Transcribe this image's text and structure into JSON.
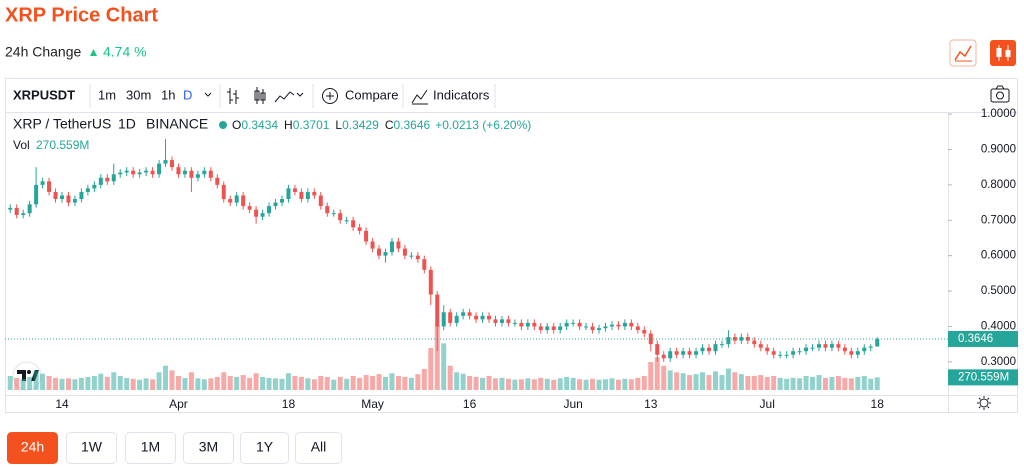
{
  "header": {
    "title": "XRP Price Chart",
    "change_label": "24h Change",
    "change_value": "4.74 %"
  },
  "toolbar": {
    "symbol": "XRPUSDT",
    "intervals": [
      "1m",
      "30m",
      "1h",
      "D"
    ],
    "compare": "Compare",
    "indicators": "Indicators"
  },
  "chart_data": {
    "type": "candlestick",
    "symbol_label": "XRP / TetherUS",
    "interval": "1D",
    "exchange": "BINANCE",
    "ohlc_labels": [
      "O",
      "H",
      "L",
      "C"
    ],
    "change": "+0.0213 (+6.20%)",
    "volume_label": "Vol",
    "volume_value_label": "270.559M",
    "categories": [
      null,
      null,
      null,
      null,
      null,
      null,
      null,
      null,
      "14",
      null,
      null,
      null,
      null,
      null,
      null,
      null,
      null,
      null,
      null,
      null,
      null,
      null,
      null,
      null,
      null,
      null,
      "Apr",
      null,
      null,
      null,
      null,
      null,
      null,
      null,
      null,
      null,
      null,
      null,
      null,
      null,
      null,
      null,
      null,
      "18",
      null,
      null,
      null,
      null,
      null,
      null,
      null,
      null,
      null,
      null,
      null,
      null,
      "May",
      null,
      null,
      null,
      null,
      null,
      null,
      null,
      null,
      null,
      null,
      null,
      null,
      null,
      null,
      "16",
      null,
      null,
      null,
      null,
      null,
      null,
      null,
      null,
      null,
      null,
      null,
      null,
      null,
      null,
      null,
      "Jun",
      null,
      null,
      null,
      null,
      null,
      null,
      null,
      null,
      null,
      null,
      null,
      "13",
      null,
      null,
      null,
      null,
      null,
      null,
      null,
      null,
      null,
      null,
      null,
      null,
      null,
      null,
      null,
      null,
      null,
      "Jul",
      null,
      null,
      null,
      null,
      null,
      null,
      null,
      null,
      null,
      null,
      null,
      null,
      null,
      null,
      null,
      null,
      "18"
    ],
    "open": [
      0.73,
      0.735,
      0.715,
      0.72,
      0.745,
      0.8,
      0.81,
      0.78,
      0.76,
      0.77,
      0.75,
      0.76,
      0.78,
      0.79,
      0.8,
      0.82,
      0.81,
      0.83,
      0.835,
      0.84,
      0.83,
      0.835,
      0.84,
      0.83,
      0.86,
      0.87,
      0.85,
      0.83,
      0.84,
      0.82,
      0.83,
      0.84,
      0.82,
      0.8,
      0.76,
      0.75,
      0.77,
      0.74,
      0.73,
      0.71,
      0.72,
      0.74,
      0.75,
      0.76,
      0.79,
      0.78,
      0.76,
      0.78,
      0.77,
      0.74,
      0.72,
      0.72,
      0.7,
      0.7,
      0.68,
      0.67,
      0.64,
      0.62,
      0.6,
      0.61,
      0.64,
      0.62,
      0.6,
      0.6,
      0.59,
      0.56,
      0.49,
      0.4,
      0.44,
      0.41,
      0.43,
      0.44,
      0.43,
      0.42,
      0.43,
      0.42,
      0.41,
      0.42,
      0.41,
      0.41,
      0.4,
      0.41,
      0.4,
      0.39,
      0.4,
      0.39,
      0.4,
      0.41,
      0.41,
      0.4,
      0.4,
      0.39,
      0.395,
      0.4,
      0.405,
      0.4,
      0.41,
      0.4,
      0.39,
      0.38,
      0.35,
      0.32,
      0.31,
      0.33,
      0.32,
      0.33,
      0.32,
      0.33,
      0.34,
      0.33,
      0.35,
      0.35,
      0.37,
      0.36,
      0.37,
      0.36,
      0.35,
      0.34,
      0.33,
      0.32,
      0.32,
      0.32,
      0.33,
      0.33,
      0.34,
      0.34,
      0.35,
      0.34,
      0.35,
      0.34,
      0.33,
      0.32,
      0.33,
      0.34,
      0.3434
    ],
    "high": [
      0.745,
      0.745,
      0.73,
      0.755,
      0.85,
      0.82,
      0.82,
      0.79,
      0.78,
      0.78,
      0.77,
      0.79,
      0.8,
      0.81,
      0.83,
      0.83,
      0.86,
      0.845,
      0.85,
      0.85,
      0.845,
      0.85,
      0.85,
      0.87,
      0.93,
      0.88,
      0.86,
      0.85,
      0.85,
      0.84,
      0.85,
      0.85,
      0.83,
      0.81,
      0.77,
      0.78,
      0.78,
      0.75,
      0.74,
      0.73,
      0.75,
      0.76,
      0.77,
      0.8,
      0.8,
      0.79,
      0.79,
      0.79,
      0.78,
      0.75,
      0.73,
      0.73,
      0.71,
      0.71,
      0.69,
      0.68,
      0.65,
      0.63,
      0.62,
      0.65,
      0.65,
      0.63,
      0.61,
      0.61,
      0.6,
      0.57,
      0.5,
      0.46,
      0.45,
      0.44,
      0.45,
      0.45,
      0.44,
      0.44,
      0.44,
      0.43,
      0.43,
      0.43,
      0.42,
      0.42,
      0.42,
      0.42,
      0.41,
      0.41,
      0.41,
      0.41,
      0.42,
      0.42,
      0.42,
      0.41,
      0.41,
      0.405,
      0.41,
      0.415,
      0.415,
      0.42,
      0.42,
      0.41,
      0.4,
      0.39,
      0.36,
      0.33,
      0.34,
      0.34,
      0.34,
      0.34,
      0.34,
      0.35,
      0.35,
      0.36,
      0.36,
      0.39,
      0.38,
      0.38,
      0.38,
      0.37,
      0.36,
      0.35,
      0.34,
      0.33,
      0.33,
      0.34,
      0.34,
      0.35,
      0.35,
      0.36,
      0.36,
      0.36,
      0.36,
      0.35,
      0.34,
      0.34,
      0.35,
      0.35,
      0.3701
    ],
    "low": [
      0.72,
      0.705,
      0.705,
      0.71,
      0.735,
      0.79,
      0.77,
      0.75,
      0.75,
      0.74,
      0.74,
      0.75,
      0.77,
      0.78,
      0.79,
      0.8,
      0.8,
      0.82,
      0.825,
      0.82,
      0.82,
      0.825,
      0.82,
      0.82,
      0.85,
      0.84,
      0.82,
      0.82,
      0.78,
      0.81,
      0.82,
      0.81,
      0.79,
      0.75,
      0.74,
      0.74,
      0.73,
      0.72,
      0.69,
      0.7,
      0.71,
      0.73,
      0.74,
      0.75,
      0.77,
      0.75,
      0.75,
      0.76,
      0.73,
      0.71,
      0.71,
      0.69,
      0.69,
      0.67,
      0.66,
      0.63,
      0.61,
      0.59,
      0.58,
      0.6,
      0.61,
      0.59,
      0.59,
      0.58,
      0.55,
      0.46,
      0.33,
      0.39,
      0.4,
      0.4,
      0.42,
      0.42,
      0.41,
      0.41,
      0.41,
      0.4,
      0.4,
      0.4,
      0.4,
      0.39,
      0.39,
      0.39,
      0.38,
      0.38,
      0.38,
      0.38,
      0.39,
      0.4,
      0.39,
      0.39,
      0.38,
      0.38,
      0.385,
      0.39,
      0.39,
      0.39,
      0.39,
      0.38,
      0.37,
      0.33,
      0.3,
      0.3,
      0.3,
      0.31,
      0.31,
      0.31,
      0.31,
      0.32,
      0.32,
      0.32,
      0.34,
      0.34,
      0.35,
      0.35,
      0.35,
      0.34,
      0.33,
      0.32,
      0.31,
      0.31,
      0.31,
      0.31,
      0.32,
      0.32,
      0.33,
      0.33,
      0.33,
      0.33,
      0.33,
      0.32,
      0.31,
      0.31,
      0.32,
      0.33,
      0.3429
    ],
    "close": [
      0.735,
      0.715,
      0.72,
      0.745,
      0.8,
      0.81,
      0.78,
      0.76,
      0.77,
      0.75,
      0.76,
      0.78,
      0.79,
      0.8,
      0.82,
      0.81,
      0.83,
      0.835,
      0.84,
      0.83,
      0.835,
      0.84,
      0.83,
      0.86,
      0.87,
      0.85,
      0.83,
      0.84,
      0.82,
      0.83,
      0.84,
      0.82,
      0.8,
      0.76,
      0.75,
      0.77,
      0.74,
      0.73,
      0.71,
      0.72,
      0.74,
      0.75,
      0.76,
      0.79,
      0.78,
      0.76,
      0.78,
      0.77,
      0.74,
      0.72,
      0.72,
      0.7,
      0.7,
      0.68,
      0.67,
      0.64,
      0.62,
      0.6,
      0.61,
      0.64,
      0.62,
      0.6,
      0.6,
      0.59,
      0.56,
      0.49,
      0.4,
      0.44,
      0.41,
      0.43,
      0.44,
      0.43,
      0.42,
      0.43,
      0.42,
      0.41,
      0.42,
      0.41,
      0.41,
      0.4,
      0.41,
      0.4,
      0.39,
      0.4,
      0.39,
      0.4,
      0.41,
      0.41,
      0.4,
      0.4,
      0.39,
      0.395,
      0.4,
      0.405,
      0.4,
      0.41,
      0.4,
      0.39,
      0.38,
      0.35,
      0.32,
      0.31,
      0.33,
      0.32,
      0.33,
      0.32,
      0.33,
      0.34,
      0.33,
      0.35,
      0.35,
      0.37,
      0.36,
      0.37,
      0.36,
      0.35,
      0.34,
      0.33,
      0.32,
      0.32,
      0.32,
      0.33,
      0.33,
      0.34,
      0.34,
      0.35,
      0.34,
      0.35,
      0.34,
      0.33,
      0.32,
      0.33,
      0.34,
      0.3433,
      0.3646
    ],
    "volume": [
      300,
      260,
      240,
      280,
      420,
      350,
      300,
      260,
      240,
      250,
      230,
      260,
      280,
      300,
      350,
      280,
      380,
      300,
      260,
      240,
      220,
      250,
      230,
      380,
      520,
      420,
      300,
      260,
      380,
      250,
      230,
      250,
      280,
      380,
      300,
      280,
      320,
      260,
      360,
      280,
      260,
      250,
      240,
      360,
      300,
      280,
      250,
      230,
      300,
      280,
      220,
      280,
      240,
      300,
      260,
      320,
      300,
      340,
      280,
      360,
      300,
      280,
      260,
      340,
      450,
      900,
      1400,
      1000,
      520,
      380,
      350,
      300,
      280,
      260,
      300,
      250,
      260,
      240,
      220,
      230,
      250,
      230,
      260,
      240,
      220,
      250,
      280,
      260,
      230,
      220,
      240,
      220,
      230,
      250,
      220,
      240,
      230,
      260,
      300,
      600,
      700,
      520,
      420,
      380,
      360,
      320,
      340,
      380,
      320,
      400,
      320,
      460,
      380,
      340,
      300,
      300,
      320,
      280,
      300,
      260,
      240,
      260,
      250,
      300,
      280,
      320,
      260,
      280,
      300,
      260,
      250,
      280,
      300,
      240,
      270.559
    ],
    "ylim": [
      0.195,
      1.02
    ],
    "yticks": [
      {
        "value": 0.3,
        "label": "0.3000"
      },
      {
        "value": 0.4,
        "label": "0.4000"
      },
      {
        "value": 0.5,
        "label": "0.5000"
      },
      {
        "value": 0.6,
        "label": "0.6000"
      },
      {
        "value": 0.7,
        "label": "0.7000"
      },
      {
        "value": 0.8,
        "label": "0.8000"
      },
      {
        "value": 0.9,
        "label": "0.9000"
      },
      {
        "value": 1.0,
        "label": "1.0000"
      }
    ],
    "vlim": [
      0,
      1500
    ],
    "up_color": "#26a69a",
    "down_color": "#ef5350"
  },
  "range_buttons": [
    "24h",
    "1W",
    "1M",
    "3M",
    "1Y",
    "All"
  ]
}
